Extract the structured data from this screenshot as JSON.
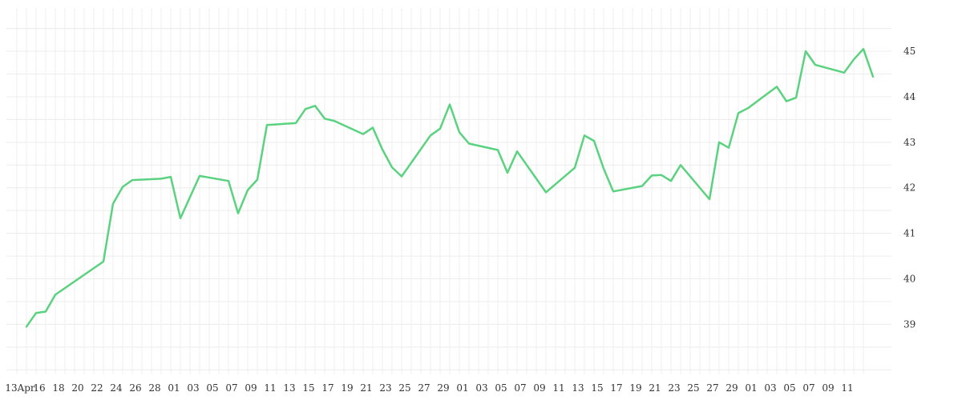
{
  "chart_data": {
    "type": "line",
    "title": "",
    "xlabel": "",
    "ylabel": "",
    "x_tick_labels": [
      "13Apr",
      "16",
      "18",
      "20",
      "22",
      "24",
      "26",
      "28",
      "01",
      "03",
      "05",
      "07",
      "09",
      "11",
      "13",
      "15",
      "17",
      "19",
      "21",
      "23",
      "25",
      "27",
      "29",
      "01",
      "03",
      "05",
      "07",
      "09",
      "11",
      "13",
      "15",
      "17",
      "19",
      "21",
      "23",
      "25",
      "27",
      "29",
      "01",
      "03",
      "05",
      "07",
      "09",
      "11"
    ],
    "y_ticks": [
      39,
      40,
      41,
      42,
      43,
      44,
      45
    ],
    "ylim": [
      37.9,
      45.95
    ],
    "grid": true,
    "y_axis_position": "right",
    "colors": {
      "line": "#5ad27f",
      "grid": "#ececec",
      "text": "#333333"
    },
    "series": [
      {
        "values": [
          [
            1,
            38.95
          ],
          [
            2,
            39.25
          ],
          [
            3,
            39.28
          ],
          [
            4,
            39.65
          ],
          [
            9,
            40.38
          ],
          [
            10,
            41.65
          ],
          [
            11,
            42.02
          ],
          [
            12,
            42.17
          ],
          [
            15,
            42.2
          ],
          [
            16,
            42.24
          ],
          [
            17,
            41.33
          ],
          [
            19,
            42.26
          ],
          [
            22,
            42.15
          ],
          [
            23,
            41.44
          ],
          [
            24,
            41.95
          ],
          [
            25,
            42.18
          ],
          [
            26,
            43.38
          ],
          [
            29,
            43.42
          ],
          [
            30,
            43.73
          ],
          [
            31,
            43.8
          ],
          [
            32,
            43.52
          ],
          [
            33,
            43.47
          ],
          [
            36,
            43.18
          ],
          [
            37,
            43.32
          ],
          [
            38,
            42.84
          ],
          [
            39,
            42.45
          ],
          [
            40,
            42.25
          ],
          [
            43,
            43.15
          ],
          [
            44,
            43.3
          ],
          [
            45,
            43.83
          ],
          [
            46,
            43.22
          ],
          [
            47,
            42.97
          ],
          [
            50,
            42.83
          ],
          [
            51,
            42.33
          ],
          [
            52,
            42.8
          ],
          [
            55,
            41.9
          ],
          [
            58,
            42.44
          ],
          [
            59,
            43.15
          ],
          [
            60,
            43.03
          ],
          [
            61,
            42.42
          ],
          [
            62,
            41.92
          ],
          [
            65,
            42.04
          ],
          [
            66,
            42.27
          ],
          [
            67,
            42.28
          ],
          [
            68,
            42.15
          ],
          [
            69,
            42.5
          ],
          [
            72,
            41.75
          ],
          [
            73,
            43.0
          ],
          [
            74,
            42.88
          ],
          [
            75,
            43.64
          ],
          [
            76,
            43.75
          ],
          [
            79,
            44.22
          ],
          [
            80,
            43.9
          ],
          [
            81,
            43.98
          ],
          [
            82,
            45.0
          ],
          [
            83,
            44.7
          ],
          [
            86,
            44.53
          ],
          [
            87,
            44.82
          ],
          [
            88,
            45.05
          ],
          [
            89,
            44.44
          ]
        ]
      }
    ]
  }
}
